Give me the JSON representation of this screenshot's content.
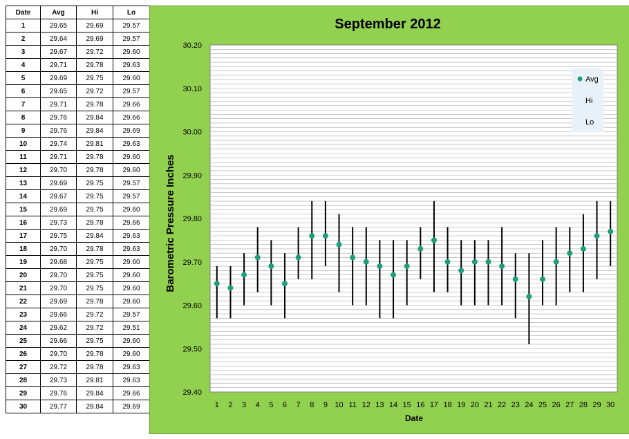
{
  "table": {
    "headers": [
      "Date",
      "Avg",
      "Hi",
      "Lo"
    ],
    "rows": [
      [
        "1",
        "29.65",
        "29.69",
        "29.57"
      ],
      [
        "2",
        "29.64",
        "29.69",
        "29.57"
      ],
      [
        "3",
        "29.67",
        "29.72",
        "29.60"
      ],
      [
        "4",
        "29.71",
        "29.78",
        "29.63"
      ],
      [
        "5",
        "29.69",
        "29.75",
        "29.60"
      ],
      [
        "6",
        "29.65",
        "29.72",
        "29.57"
      ],
      [
        "7",
        "29.71",
        "29.78",
        "29.66"
      ],
      [
        "8",
        "29.76",
        "29.84",
        "29.66"
      ],
      [
        "9",
        "29.76",
        "29.84",
        "29.69"
      ],
      [
        "10",
        "29.74",
        "29.81",
        "29.63"
      ],
      [
        "11",
        "29.71",
        "29.78",
        "29.60"
      ],
      [
        "12",
        "29.70",
        "29.78",
        "29.60"
      ],
      [
        "13",
        "29.69",
        "29.75",
        "29.57"
      ],
      [
        "14",
        "29.67",
        "29.75",
        "29.57"
      ],
      [
        "15",
        "29.69",
        "29.75",
        "29.60"
      ],
      [
        "16",
        "29.73",
        "29.78",
        "29.66"
      ],
      [
        "17",
        "29.75",
        "29.84",
        "29.63"
      ],
      [
        "18",
        "29.70",
        "29.78",
        "29.63"
      ],
      [
        "19",
        "29.68",
        "29.75",
        "29.60"
      ],
      [
        "20",
        "29.70",
        "29.75",
        "29.60"
      ],
      [
        "21",
        "29.70",
        "29.75",
        "29.60"
      ],
      [
        "22",
        "29.69",
        "29.78",
        "29.60"
      ],
      [
        "23",
        "29.66",
        "29.72",
        "29.57"
      ],
      [
        "24",
        "29.62",
        "29.72",
        "29.51"
      ],
      [
        "25",
        "29.66",
        "29.75",
        "29.60"
      ],
      [
        "26",
        "29.70",
        "29.78",
        "29.60"
      ],
      [
        "27",
        "29.72",
        "29.78",
        "29.63"
      ],
      [
        "28",
        "29.73",
        "29.81",
        "29.63"
      ],
      [
        "29",
        "29.76",
        "29.84",
        "29.66"
      ],
      [
        "30",
        "29.77",
        "29.84",
        "29.69"
      ]
    ]
  },
  "chart_data": {
    "type": "scatter",
    "title": "September 2012",
    "xlabel": "Date",
    "ylabel": "Barometric Pressure Inches",
    "ylim": [
      29.4,
      30.2
    ],
    "y_ticks": [
      "29.40",
      "29.50",
      "29.60",
      "29.70",
      "29.80",
      "29.90",
      "30.00",
      "30.10",
      "30.20"
    ],
    "x": [
      1,
      2,
      3,
      4,
      5,
      6,
      7,
      8,
      9,
      10,
      11,
      12,
      13,
      14,
      15,
      16,
      17,
      18,
      19,
      20,
      21,
      22,
      23,
      24,
      25,
      26,
      27,
      28,
      29,
      30
    ],
    "x_tick_labels": [
      "1",
      "2",
      "3",
      "4",
      "5",
      "6",
      "7",
      "8",
      "9",
      "10",
      "11",
      "12",
      "13",
      "14",
      "15",
      "16",
      "17",
      "18",
      "19",
      "20",
      "21",
      "22",
      "23",
      "24",
      "25",
      "26",
      "27",
      "28",
      "29",
      "30"
    ],
    "grid": true,
    "legend_position": "top-right",
    "series": [
      {
        "name": "Avg",
        "values": [
          29.65,
          29.64,
          29.67,
          29.71,
          29.69,
          29.65,
          29.71,
          29.76,
          29.76,
          29.74,
          29.71,
          29.7,
          29.69,
          29.67,
          29.69,
          29.73,
          29.75,
          29.7,
          29.68,
          29.7,
          29.7,
          29.69,
          29.66,
          29.62,
          29.66,
          29.7,
          29.72,
          29.73,
          29.76,
          29.77
        ]
      },
      {
        "name": "Hi",
        "values": [
          29.69,
          29.69,
          29.72,
          29.78,
          29.75,
          29.72,
          29.78,
          29.84,
          29.84,
          29.81,
          29.78,
          29.78,
          29.75,
          29.75,
          29.75,
          29.78,
          29.84,
          29.78,
          29.75,
          29.75,
          29.75,
          29.78,
          29.72,
          29.72,
          29.75,
          29.78,
          29.78,
          29.81,
          29.84,
          29.84
        ]
      },
      {
        "name": "Lo",
        "values": [
          29.57,
          29.57,
          29.6,
          29.63,
          29.6,
          29.57,
          29.66,
          29.66,
          29.69,
          29.63,
          29.6,
          29.6,
          29.57,
          29.57,
          29.6,
          29.66,
          29.63,
          29.63,
          29.6,
          29.6,
          29.6,
          29.6,
          29.57,
          29.51,
          29.6,
          29.6,
          29.63,
          29.63,
          29.66,
          29.69
        ]
      }
    ]
  },
  "colors": {
    "panel_background": "#92d050",
    "plot_background": "#ffffff",
    "gridline": "#a6a6a6",
    "avg_marker": "#1f9e7a",
    "range_line": "#000000",
    "legend_background": "#e8f0f8"
  }
}
